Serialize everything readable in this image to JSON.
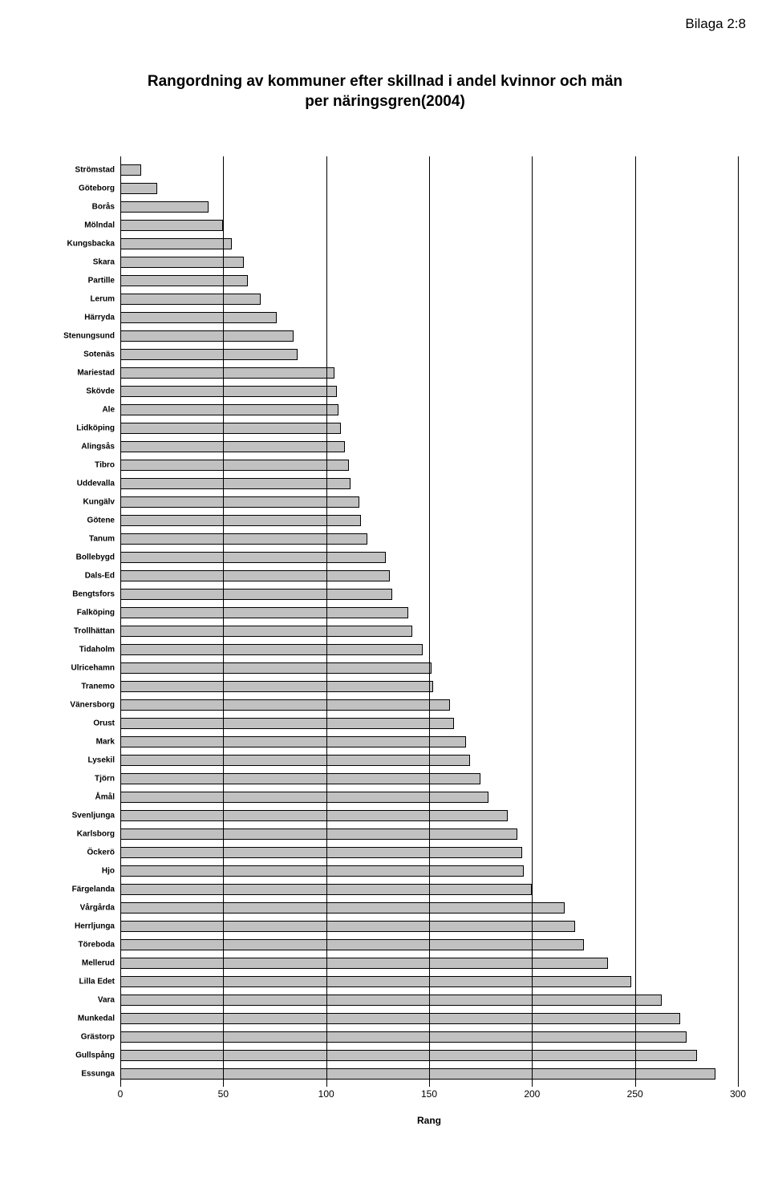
{
  "header": "Bilaga 2:8",
  "chart": {
    "type": "bar-horizontal",
    "title": "Rangordning av kommuner efter skillnad i andel kvinnor och män\nper näringsgren(2004)",
    "x_axis_label": "Rang",
    "xlim": [
      0,
      300
    ],
    "xtick_step": 50,
    "xticks": [
      0,
      50,
      100,
      150,
      200,
      250,
      300
    ],
    "bar_fill": "#c1c1c1",
    "bar_border": "#000000",
    "grid_color": "#000000",
    "background": "#ffffff",
    "label_fontsize": 10,
    "tick_fontsize": 12,
    "title_fontsize": 19,
    "categories": [
      "Strömstad",
      "Göteborg",
      "Borås",
      "Mölndal",
      "Kungsbacka",
      "Skara",
      "Partille",
      "Lerum",
      "Härryda",
      "Stenungsund",
      "Sotenäs",
      "Mariestad",
      "Skövde",
      "Ale",
      "Lidköping",
      "Alingsås",
      "Tibro",
      "Uddevalla",
      "Kungälv",
      "Götene",
      "Tanum",
      "Bollebygd",
      "Dals-Ed",
      "Bengtsfors",
      "Falköping",
      "Trollhättan",
      "Tidaholm",
      "Ulricehamn",
      "Tranemo",
      "Vänersborg",
      "Orust",
      "Mark",
      "Lysekil",
      "Tjörn",
      "Åmål",
      "Svenljunga",
      "Karlsborg",
      "Öckerö",
      "Hjo",
      "Färgelanda",
      "Vårgårda",
      "Herrljunga",
      "Töreboda",
      "Mellerud",
      "Lilla Edet",
      "Vara",
      "Munkedal",
      "Grästorp",
      "Gullspång",
      "Essunga"
    ],
    "values": [
      10,
      18,
      43,
      50,
      54,
      60,
      62,
      68,
      76,
      84,
      86,
      104,
      105,
      106,
      107,
      109,
      111,
      112,
      116,
      117,
      120,
      129,
      131,
      132,
      140,
      142,
      147,
      151,
      152,
      160,
      162,
      168,
      170,
      175,
      179,
      188,
      193,
      195,
      196,
      200,
      216,
      221,
      225,
      237,
      248,
      263,
      272,
      275,
      280,
      289
    ]
  }
}
